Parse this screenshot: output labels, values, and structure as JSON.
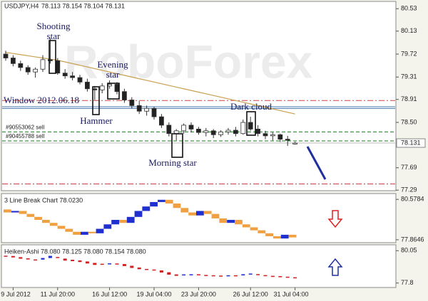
{
  "chart_data": [
    {
      "type": "candlestick",
      "title": "USDJPY,H4",
      "ohlc_label": "78.113 78.154 78.104 78.131",
      "watermark": "RoboForex",
      "open": [
        79.72,
        79.65,
        79.55,
        79.48,
        79.4,
        79.45,
        79.62,
        79.6,
        79.38,
        79.33,
        79.3,
        79.22,
        79.1,
        79.08,
        79.15,
        79.18,
        79.05,
        78.9,
        78.8,
        78.7,
        78.75,
        78.6,
        78.45,
        78.3,
        78.35,
        78.45,
        78.38,
        78.32,
        78.35,
        78.28,
        78.33,
        78.36,
        78.3,
        78.5,
        78.38,
        78.3,
        78.26,
        78.28,
        78.2,
        78.113
      ],
      "high": [
        79.78,
        79.7,
        79.6,
        79.52,
        79.48,
        79.7,
        80.0,
        79.65,
        79.45,
        79.4,
        79.35,
        79.28,
        79.15,
        79.2,
        79.25,
        79.22,
        79.1,
        78.95,
        78.88,
        78.8,
        78.78,
        78.65,
        78.5,
        78.38,
        78.48,
        78.5,
        78.42,
        78.4,
        78.38,
        78.36,
        78.4,
        78.42,
        78.55,
        78.6,
        78.45,
        78.35,
        78.32,
        78.3,
        78.26,
        78.154
      ],
      "low": [
        79.6,
        79.5,
        79.42,
        79.35,
        79.3,
        79.4,
        79.55,
        79.35,
        79.28,
        79.25,
        79.18,
        79.05,
        78.9,
        79.02,
        79.1,
        79.0,
        78.85,
        78.75,
        78.65,
        78.62,
        78.55,
        78.4,
        78.25,
        78.18,
        78.3,
        78.32,
        78.28,
        78.25,
        78.22,
        78.24,
        78.28,
        78.25,
        78.28,
        78.35,
        78.25,
        78.2,
        78.18,
        78.15,
        78.08,
        78.104
      ],
      "close": [
        79.65,
        79.55,
        79.48,
        79.4,
        79.45,
        79.62,
        79.6,
        79.38,
        79.33,
        79.3,
        79.22,
        79.1,
        79.08,
        79.15,
        79.18,
        79.05,
        78.9,
        78.8,
        78.7,
        78.75,
        78.6,
        78.45,
        78.3,
        78.35,
        78.45,
        78.38,
        78.32,
        78.35,
        78.28,
        78.33,
        78.36,
        78.3,
        78.5,
        78.38,
        78.3,
        78.26,
        78.28,
        78.2,
        78.18,
        78.131
      ],
      "ma_values": [
        79.75,
        79.73,
        79.71,
        79.69,
        79.67,
        79.65,
        79.63,
        79.61,
        79.58,
        79.55,
        79.52,
        79.49,
        79.46,
        79.43,
        79.4,
        79.37,
        79.34,
        79.31,
        79.28,
        79.25,
        79.22,
        79.19,
        79.16,
        79.13,
        79.1,
        79.07,
        79.04,
        79.01,
        78.98,
        78.95,
        78.92,
        78.89,
        78.86,
        78.83,
        78.8,
        78.77,
        78.74,
        78.71,
        78.68,
        78.65
      ],
      "ma_color": "#c8a050",
      "current_price": 78.131,
      "levels": [
        {
          "value": 78.89,
          "color": "#d04040",
          "style": "dashdot"
        },
        {
          "value": 78.78,
          "color": "#4a7ab0",
          "style": "solid"
        },
        {
          "value": 78.75,
          "color": "#4a7ab0",
          "style": "solid"
        },
        {
          "value": 78.33,
          "color": "#108010",
          "style": "dashed",
          "label": "#90553062 sell"
        },
        {
          "value": 78.17,
          "color": "#108010",
          "style": "dashed",
          "label": "#90455788 sell"
        },
        {
          "value": 77.4,
          "color": "#d04040",
          "style": "dashdot"
        }
      ],
      "annotations": [
        {
          "lines": [
            "Shooting",
            "star"
          ]
        },
        {
          "lines": [
            "Evening",
            "star"
          ]
        },
        {
          "lines": [
            "Hammer"
          ]
        },
        {
          "lines": [
            "Window 2012.06.18"
          ]
        },
        {
          "lines": [
            "Dark cloud"
          ]
        },
        {
          "lines": [
            "Morning star"
          ]
        }
      ],
      "ylim": [
        77.28,
        80.66
      ],
      "yticks": [
        80.53,
        80.13,
        79.72,
        79.31,
        78.91,
        {
          "value": 78.5,
          "label": "78.50"
        },
        77.69,
        77.29
      ]
    },
    {
      "type": "line-break",
      "title": "3 Line Break Chart 78.0230",
      "values": [
        79.9,
        79.7,
        79.8,
        79.6,
        79.4,
        79.2,
        79.0,
        78.8,
        78.6,
        78.4,
        78.2,
        78.4,
        78.3,
        78.6,
        78.9,
        79.2,
        79.0,
        79.4,
        79.8,
        80.1,
        80.4,
        80.55,
        80.3,
        80.0,
        79.7,
        79.5,
        79.8,
        79.6,
        79.3,
        79.0,
        79.2,
        78.9,
        78.7,
        78.5,
        78.3,
        78.1,
        77.95,
        78.2,
        78.023
      ],
      "up_color": "#1f2fd0",
      "down_color": "#f0a040",
      "ylim": [
        77.67,
        80.97
      ],
      "yticks": [
        80.5784,
        77.8646
      ]
    },
    {
      "type": "heiken-ashi",
      "title": "Heiken-Ashi 78.080 78.125 78.080 78.154 78.080",
      "open": [
        79.7,
        79.68,
        79.6,
        79.52,
        79.44,
        79.43,
        79.54,
        79.61,
        79.5,
        79.42,
        79.37,
        79.3,
        79.2,
        79.14,
        79.13,
        79.16,
        79.12,
        79.0,
        78.88,
        78.78,
        78.74,
        78.68,
        78.55,
        78.4,
        78.36,
        78.4,
        78.41,
        78.36,
        78.34,
        78.32,
        78.32,
        78.34,
        78.33,
        78.42,
        78.42,
        78.35,
        78.3,
        78.28,
        78.24,
        78.2
      ],
      "close": [
        79.68,
        79.58,
        79.49,
        79.44,
        79.41,
        79.54,
        79.69,
        79.55,
        79.36,
        79.32,
        79.26,
        79.16,
        79.06,
        79.12,
        79.17,
        79.11,
        78.98,
        78.85,
        78.76,
        78.72,
        78.67,
        78.53,
        78.38,
        78.3,
        78.4,
        78.41,
        78.36,
        78.33,
        78.31,
        78.3,
        78.34,
        78.33,
        78.41,
        78.46,
        78.35,
        78.28,
        78.26,
        78.22,
        78.18,
        78.125
      ],
      "up_color": "#1f2fd0",
      "down_color": "#d02020",
      "categories": [
        null,
        "9 Jul 2012",
        null,
        null,
        null,
        null,
        null,
        "11 Jul 20:00",
        null,
        null,
        null,
        null,
        null,
        null,
        "16 Jul 12:00",
        null,
        null,
        null,
        null,
        null,
        "19 Jul 04:00",
        null,
        null,
        null,
        null,
        null,
        "23 Jul 20:00",
        null,
        null,
        null,
        null,
        null,
        null,
        "26 Jul 12:00",
        null,
        null,
        null,
        null,
        null,
        "31 Jul 04:00"
      ],
      "ylim": [
        77.49,
        80.46
      ],
      "yticks": [
        80.05,
        77.8
      ]
    }
  ]
}
